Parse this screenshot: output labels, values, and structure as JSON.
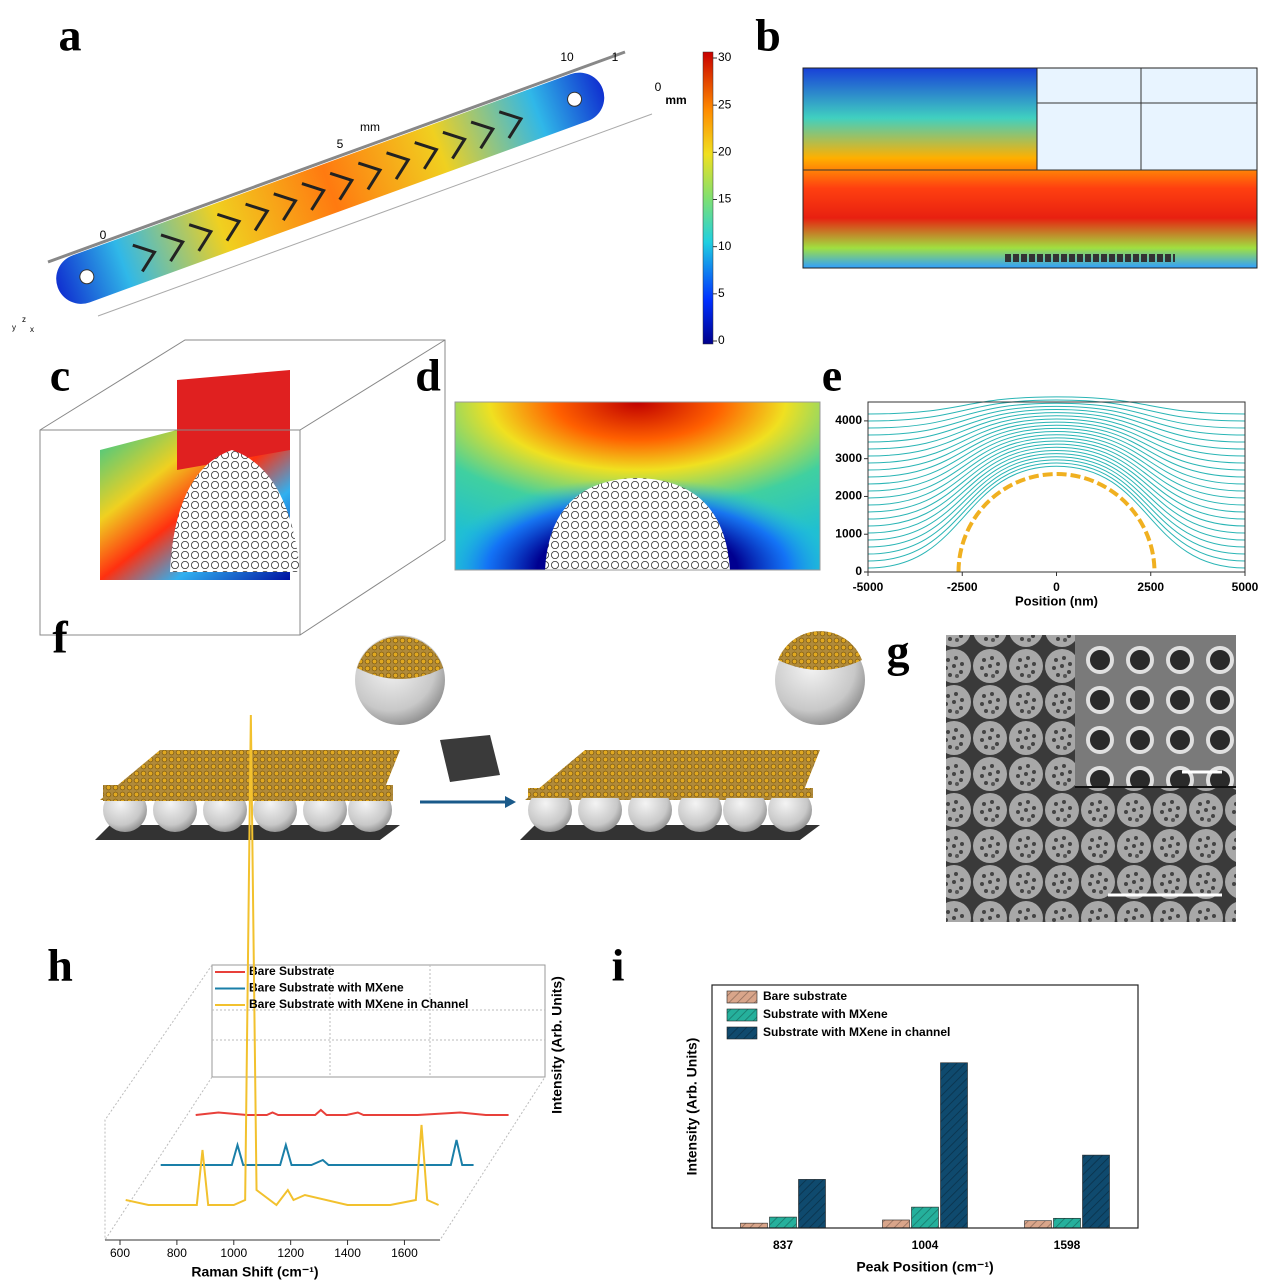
{
  "panel_labels": [
    "a",
    "b",
    "c",
    "d",
    "e",
    "f",
    "g",
    "h",
    "i"
  ],
  "panel_a": {
    "scale_labels": [
      "10",
      "1",
      "0",
      "mm",
      "mm",
      "5",
      "0"
    ],
    "axes": [
      "y",
      "z",
      "x"
    ],
    "colorbar_ticks": [
      0,
      5,
      10,
      15,
      20,
      25,
      30
    ]
  },
  "chart_data": [
    {
      "type": "streamline",
      "xlabel": "Position (nm)",
      "xlim": [
        -5000,
        5000
      ],
      "xticks": [
        -5000,
        -2500,
        0,
        2500,
        5000
      ],
      "ylim": [
        0,
        4500
      ],
      "yticks": [
        0,
        1000,
        2000,
        3000,
        4000
      ],
      "color": "#2ab5b5"
    },
    {
      "type": "line",
      "xlabel": "Raman Shift (cm⁻¹)",
      "ylabel": "Intensity (Arb. Units)",
      "x": [
        620,
        700,
        800,
        870,
        890,
        910,
        1000,
        1040,
        1060,
        1080,
        1150,
        1190,
        1210,
        1250,
        1400,
        1550,
        1640,
        1660,
        1680,
        1720
      ],
      "xlim": [
        600,
        1725
      ],
      "xticks": [
        600,
        800,
        1000,
        1200,
        1400,
        1600
      ],
      "ylim": [
        0,
        10
      ],
      "series": [
        {
          "name": "Bare Substrate",
          "color": "#e8403a",
          "values": [
            0.2,
            0.25,
            0.2,
            0.2,
            0.25,
            0.2,
            0.2,
            0.2,
            0.3,
            0.2,
            0.2,
            0.25,
            0.2,
            0.2,
            0.2,
            0.25,
            0.2,
            0.2,
            0.2,
            0.2
          ]
        },
        {
          "name": "Bare Substrate with MXene",
          "color": "#1a7fa8",
          "values": [
            0.1,
            0.1,
            0.1,
            0.1,
            0.5,
            0.1,
            0.1,
            0.1,
            0.5,
            0.1,
            0.1,
            0.2,
            0.1,
            0.1,
            0.1,
            0.1,
            0.1,
            0.6,
            0.1,
            0.1
          ]
        },
        {
          "name": "Bare Substrate with MXene in Channel",
          "color": "#f2c12e",
          "values": [
            0.3,
            0.2,
            0.2,
            0.2,
            1.3,
            0.2,
            0.2,
            0.3,
            10,
            0.5,
            0.2,
            0.5,
            0.3,
            0.4,
            0.2,
            0.2,
            0.3,
            1.8,
            0.3,
            0.2
          ]
        }
      ]
    },
    {
      "type": "bar",
      "xlabel": "Peak Position (cm⁻¹)",
      "ylabel": "Intensity (Arb. Units)",
      "categories": [
        "837",
        "1004",
        "1598"
      ],
      "ylim": [
        0,
        10
      ],
      "series": [
        {
          "name": "Bare substrate",
          "color": "#d9a58a",
          "values": [
            0.2,
            0.33,
            0.3
          ]
        },
        {
          "name": "Substrate with MXene",
          "color": "#25b09c",
          "values": [
            0.45,
            0.86,
            0.4
          ]
        },
        {
          "name": "Substrate with MXene in channel",
          "color": "#0f4a6e",
          "values": [
            2.0,
            6.8,
            3.0
          ]
        }
      ]
    }
  ]
}
